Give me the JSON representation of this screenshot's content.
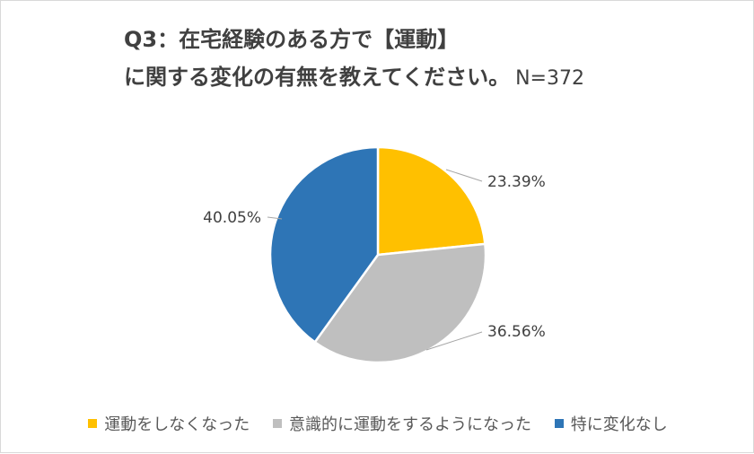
{
  "chart_data": {
    "type": "pie",
    "title_line1": "Q3：在宅経験のある方で【運動】",
    "title_line2": "に関する変化の有無を教えてください。",
    "sample_note": "N=372",
    "legend_position": "bottom",
    "slices": [
      {
        "label": "運動をしなくなった",
        "value": 23.39,
        "value_label": "23.39%",
        "color": "#ffc000"
      },
      {
        "label": "意識的に運動をするようになった",
        "value": 36.56,
        "value_label": "36.56%",
        "color": "#bfbfbf"
      },
      {
        "label": "特に変化なし",
        "value": 40.05,
        "value_label": "40.05%",
        "color": "#2e75b6"
      }
    ]
  }
}
